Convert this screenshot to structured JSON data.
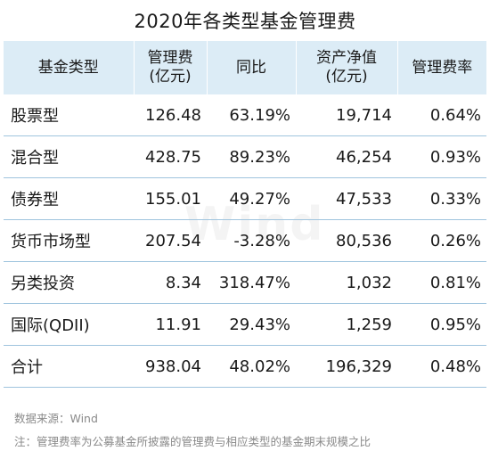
{
  "title": "2020年各类型基金管理费",
  "headers": [
    {
      "line1": "基金类型",
      "line2": ""
    },
    {
      "line1": "管理费",
      "line2": "(亿元)"
    },
    {
      "line1": "同比",
      "line2": ""
    },
    {
      "line1": "资产净值",
      "line2": "(亿元)"
    },
    {
      "line1": "管理费率",
      "line2": ""
    }
  ],
  "rows": [
    {
      "type": "股票型",
      "fee": "126.48",
      "yoy": "63.19%",
      "nav": "19,714",
      "rate": "0.64%"
    },
    {
      "type": "混合型",
      "fee": "428.75",
      "yoy": "89.23%",
      "nav": "46,254",
      "rate": "0.93%"
    },
    {
      "type": "债券型",
      "fee": "155.01",
      "yoy": "49.27%",
      "nav": "47,533",
      "rate": "0.33%"
    },
    {
      "type": "货币市场型",
      "fee": "207.54",
      "yoy": "-3.28%",
      "nav": "80,536",
      "rate": "0.26%"
    },
    {
      "type": "另类投资",
      "fee": "8.34",
      "yoy": "318.47%",
      "nav": "1,032",
      "rate": "0.81%"
    },
    {
      "type": "国际(QDII)",
      "fee": "11.91",
      "yoy": "29.43%",
      "nav": "1,259",
      "rate": "0.95%"
    },
    {
      "type": "合计",
      "fee": "938.04",
      "yoy": "48.02%",
      "nav": "196,329",
      "rate": "0.48%"
    }
  ],
  "watermark": "Wind",
  "source": "数据来源：Wind",
  "note": "注：管理费率为公募基金所披露的管理费与相应类型的基金期末规模之比",
  "colors": {
    "header_bg": "#dcecf6",
    "row_divider": "#9fc4de",
    "footnote_text": "#8a8a8a"
  }
}
